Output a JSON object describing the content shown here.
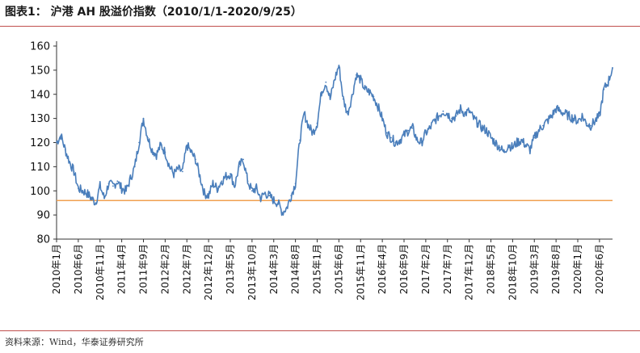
{
  "figure": {
    "title": "图表1：  沪港 AH 股溢价指数（2010/1/1-2020/9/25）",
    "source": "资料来源：Wind，华泰证券研究所"
  },
  "chart_data": {
    "type": "line",
    "title": "沪港 AH 股溢价指数（2010/1/1-2020/9/25）",
    "xlabel": "",
    "ylabel": "",
    "ylim": [
      80,
      160
    ],
    "yticks": [
      80,
      90,
      100,
      110,
      120,
      130,
      140,
      150,
      160
    ],
    "xlim": [
      "2010-01",
      "2020-09"
    ],
    "x_tick_labels": [
      "2010年1月",
      "2010年6月",
      "2010年11月",
      "2011年4月",
      "2011年9月",
      "2012年2月",
      "2012年7月",
      "2012年12月",
      "2013年5月",
      "2013年10月",
      "2014年3月",
      "2014年8月",
      "2015年1月",
      "2015年6月",
      "2015年11月",
      "2016年4月",
      "2016年9月",
      "2017年2月",
      "2017年7月",
      "2017年12月",
      "2018年5月",
      "2018年10月",
      "2019年3月",
      "2019年8月",
      "2020年1月",
      "2020年6月"
    ],
    "grid": false,
    "legend": "none",
    "colors": {
      "series": "#4a7ebb",
      "reference": "#f0a050"
    },
    "reference_line": 96,
    "series": [
      {
        "x": [
          "2010-01",
          "2010-02",
          "2010-03",
          "2010-04",
          "2010-05",
          "2010-06",
          "2010-07",
          "2010-08",
          "2010-09",
          "2010-10",
          "2010-11",
          "2010-12",
          "2011-01",
          "2011-02",
          "2011-03",
          "2011-04",
          "2011-05",
          "2011-06",
          "2011-07",
          "2011-08",
          "2011-09",
          "2011-10",
          "2011-11",
          "2011-12",
          "2012-01",
          "2012-02",
          "2012-03",
          "2012-04",
          "2012-05",
          "2012-06",
          "2012-07",
          "2012-08",
          "2012-09",
          "2012-10",
          "2012-11",
          "2012-12",
          "2013-01",
          "2013-02",
          "2013-03",
          "2013-04",
          "2013-05",
          "2013-06",
          "2013-07",
          "2013-08",
          "2013-09",
          "2013-10",
          "2013-11",
          "2013-12",
          "2014-01",
          "2014-02",
          "2014-03",
          "2014-04",
          "2014-05",
          "2014-06",
          "2014-07",
          "2014-08",
          "2014-09",
          "2014-10",
          "2014-11",
          "2014-12",
          "2015-01",
          "2015-02",
          "2015-03",
          "2015-04",
          "2015-05",
          "2015-06",
          "2015-07",
          "2015-08",
          "2015-09",
          "2015-10",
          "2015-11",
          "2015-12",
          "2016-01",
          "2016-02",
          "2016-03",
          "2016-04",
          "2016-05",
          "2016-06",
          "2016-07",
          "2016-08",
          "2016-09",
          "2016-10",
          "2016-11",
          "2016-12",
          "2017-01",
          "2017-02",
          "2017-03",
          "2017-04",
          "2017-05",
          "2017-06",
          "2017-07",
          "2017-08",
          "2017-09",
          "2017-10",
          "2017-11",
          "2017-12",
          "2018-01",
          "2018-02",
          "2018-03",
          "2018-04",
          "2018-05",
          "2018-06",
          "2018-07",
          "2018-08",
          "2018-09",
          "2018-10",
          "2018-11",
          "2018-12",
          "2019-01",
          "2019-02",
          "2019-03",
          "2019-04",
          "2019-05",
          "2019-06",
          "2019-07",
          "2019-08",
          "2019-09",
          "2019-10",
          "2019-11",
          "2019-12",
          "2020-01",
          "2020-02",
          "2020-03",
          "2020-04",
          "2020-05",
          "2020-06",
          "2020-07",
          "2020-08",
          "2020-09"
        ],
        "values": [
          120,
          123,
          117,
          112,
          108,
          101,
          100,
          99,
          97,
          95,
          102,
          97,
          103,
          102,
          104,
          101,
          100,
          105,
          110,
          120,
          130,
          122,
          117,
          115,
          119,
          116,
          110,
          107,
          109,
          108,
          119,
          116,
          113,
          106,
          99,
          98,
          103,
          101,
          104,
          106,
          107,
          102,
          110,
          113,
          104,
          100,
          101,
          97,
          99,
          98,
          96,
          95,
          91,
          93,
          98,
          103,
          121,
          132,
          127,
          124,
          128,
          141,
          145,
          138,
          146,
          152,
          138,
          132,
          139,
          148,
          146,
          142,
          141,
          139,
          135,
          130,
          124,
          122,
          120,
          121,
          123,
          125,
          126,
          121,
          120,
          124,
          126,
          129,
          131,
          133,
          132,
          130,
          131,
          134,
          132,
          133,
          130,
          128,
          126,
          125,
          122,
          120,
          118,
          116,
          119,
          118,
          120,
          121,
          119,
          117,
          122,
          125,
          127,
          129,
          131,
          134,
          133,
          132,
          131,
          130,
          129,
          131,
          128,
          127,
          129,
          131,
          142,
          145,
          151
        ]
      }
    ]
  }
}
